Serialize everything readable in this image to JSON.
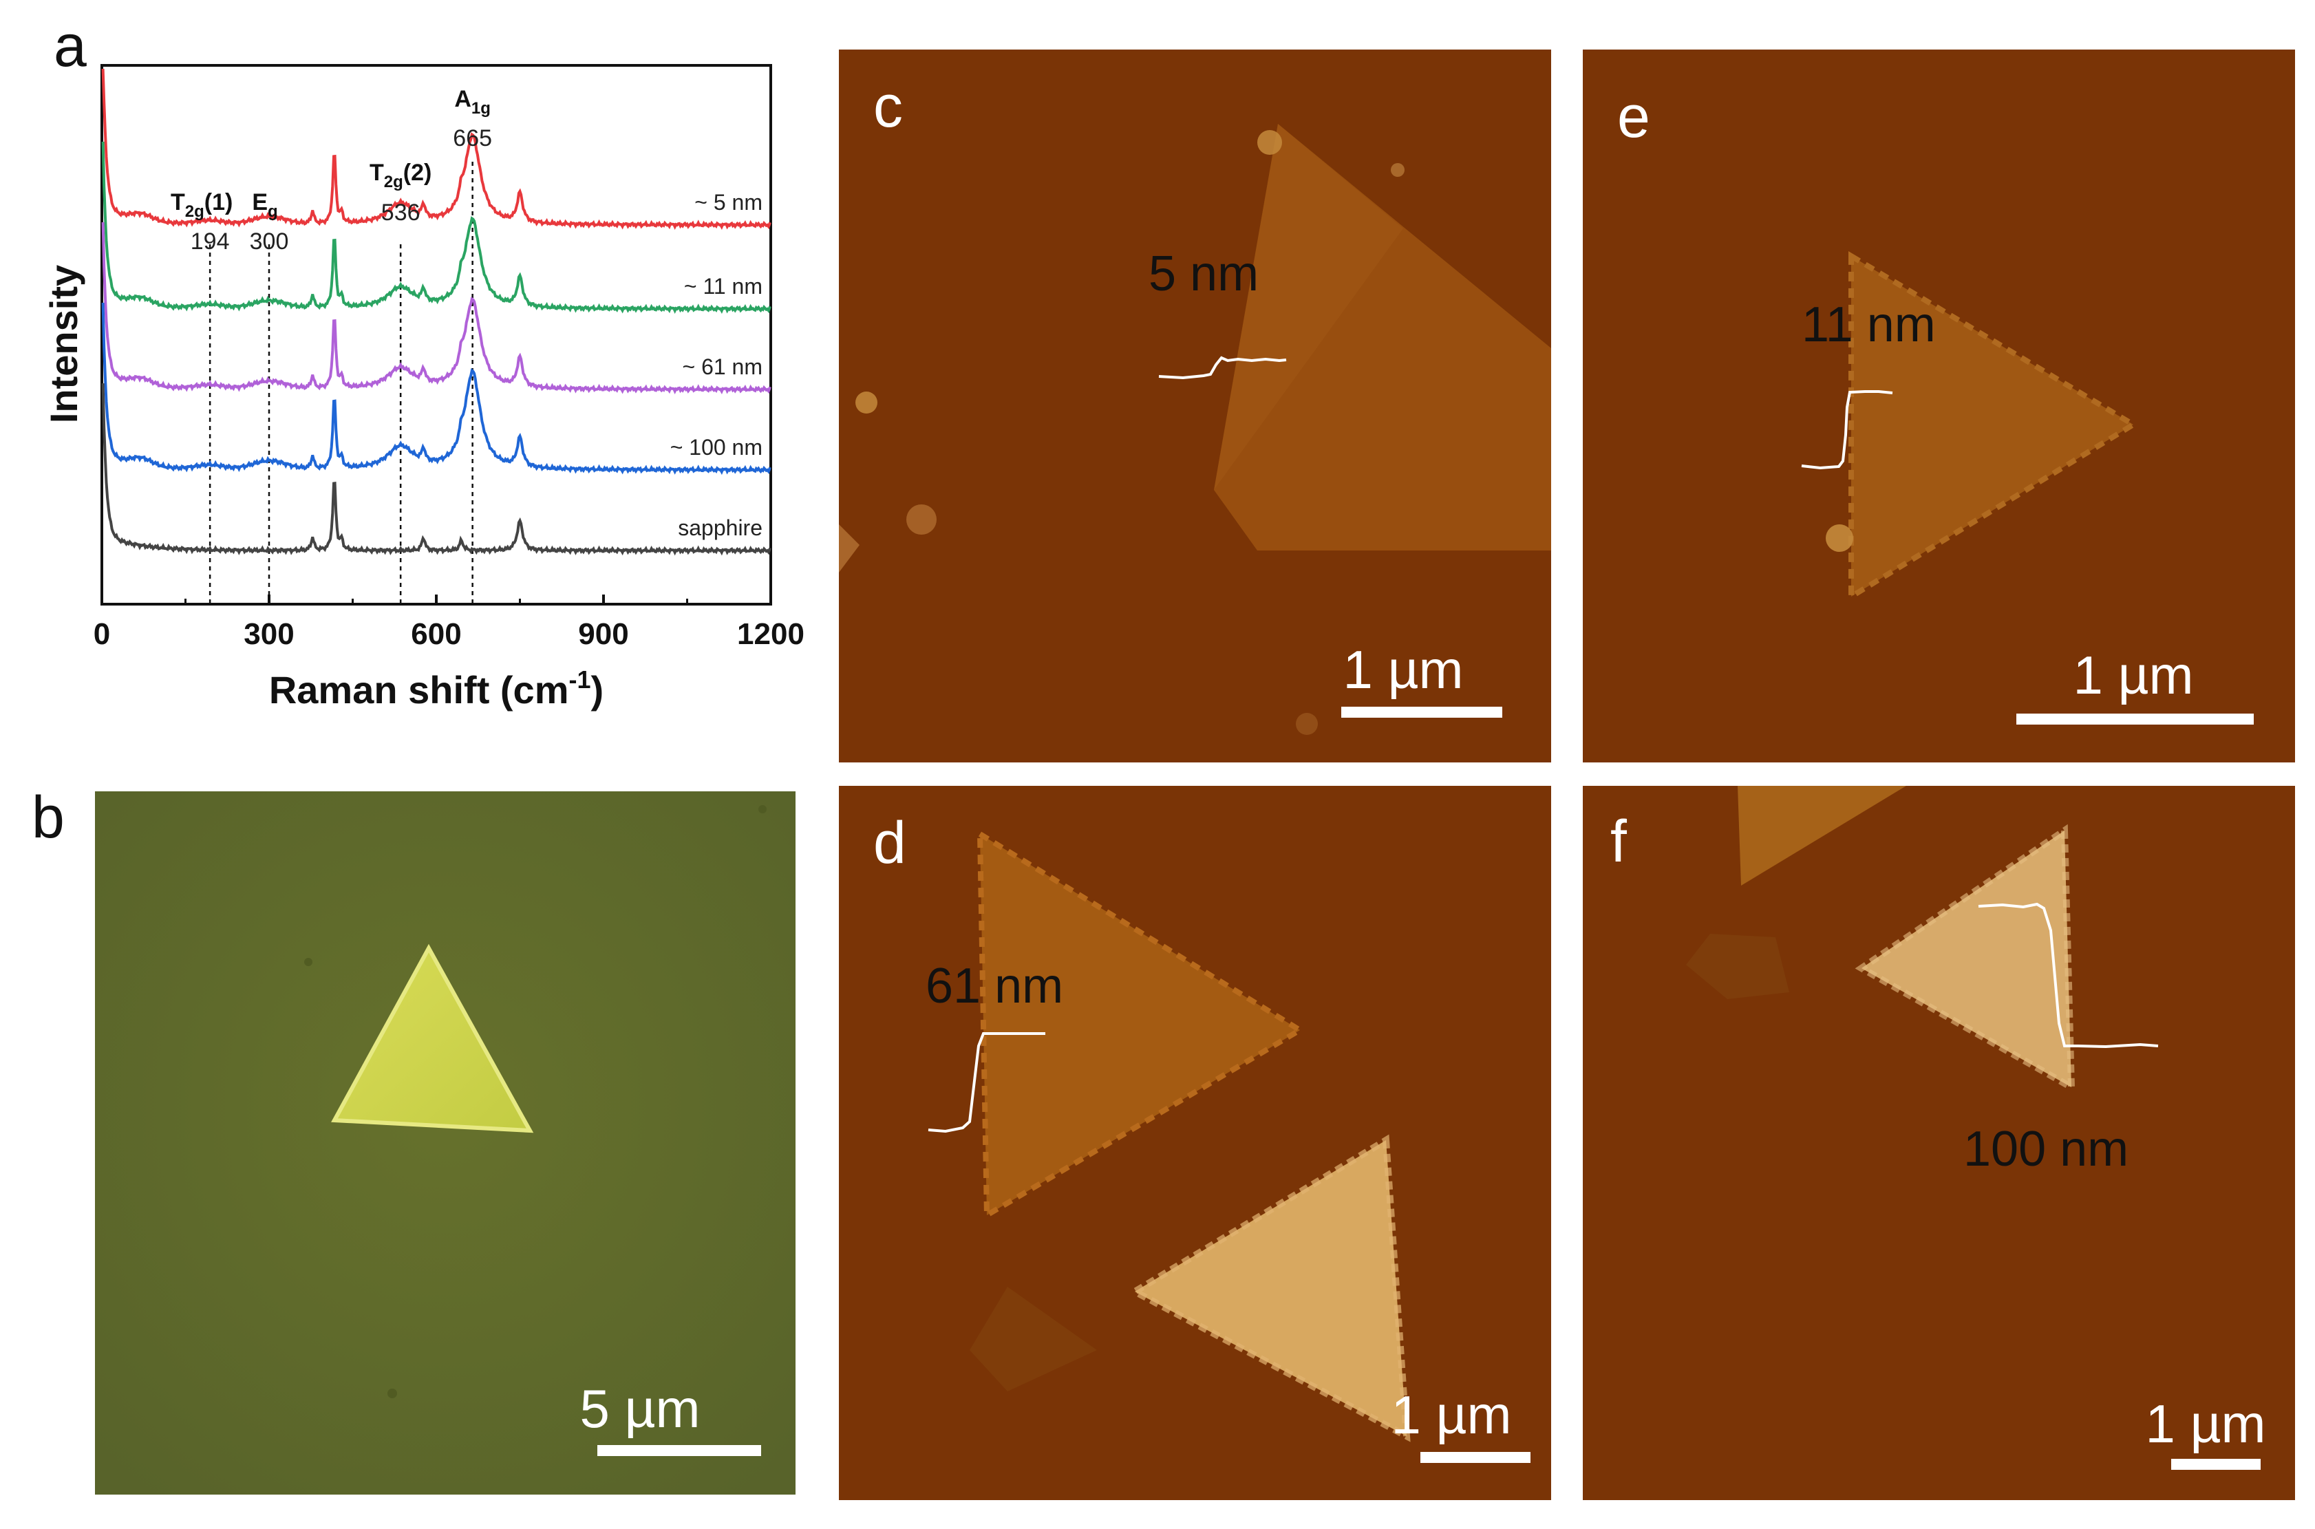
{
  "panels": {
    "a": {
      "label": "a"
    },
    "b": {
      "label": "b",
      "scalebar": "5 µm"
    },
    "c": {
      "label": "c",
      "scalebar": "1 µm",
      "thickness": "5 nm"
    },
    "d": {
      "label": "d",
      "scalebar": "1 µm",
      "thickness": "61 nm"
    },
    "e": {
      "label": "e",
      "scalebar": "1 µm",
      "thickness": "11 nm"
    },
    "f": {
      "label": "f",
      "scalebar": "1 µm",
      "thickness": "100 nm"
    }
  },
  "colors": {
    "afm_bg": "#7a3406",
    "optical_bg": "#5f6a28",
    "flake_optical": "#d6dc50"
  },
  "chart_data": {
    "type": "line",
    "title": "",
    "xlabel": "Raman shift (cm",
    "xlabel_sup": "-1",
    "xlabel_end": ")",
    "ylabel": "Intensity",
    "xlim": [
      0,
      1200
    ],
    "xticks": [
      0,
      300,
      600,
      900,
      1200
    ],
    "xtick_labels": [
      "0",
      "300",
      "600",
      "900",
      "1200"
    ],
    "peaks": [
      {
        "name": "T",
        "sub": "2g",
        "suffix": "(1)",
        "value": 194,
        "label": "194"
      },
      {
        "name": "E",
        "sub": "g",
        "suffix": "",
        "value": 300,
        "label": "300"
      },
      {
        "name": "T",
        "sub": "2g",
        "suffix": "(2)",
        "value": 536,
        "label": "536"
      },
      {
        "name": "A",
        "sub": "1g",
        "suffix": "",
        "value": 665,
        "label": "665"
      }
    ],
    "series": [
      {
        "name": "~ 5 nm",
        "color": "#e8383c",
        "offset": 4,
        "mos": 1.0
      },
      {
        "name": "~ 11 nm",
        "color": "#2aa462",
        "offset": 3,
        "mos": 1.0
      },
      {
        "name": "~ 61 nm",
        "color": "#b061d8",
        "offset": 2,
        "mos": 1.0
      },
      {
        "name": "~ 100 nm",
        "color": "#1f66d6",
        "offset": 1,
        "mos": 1.1
      },
      {
        "name": "sapphire",
        "color": "#444444",
        "offset": 0,
        "mos": 0.0
      }
    ]
  }
}
